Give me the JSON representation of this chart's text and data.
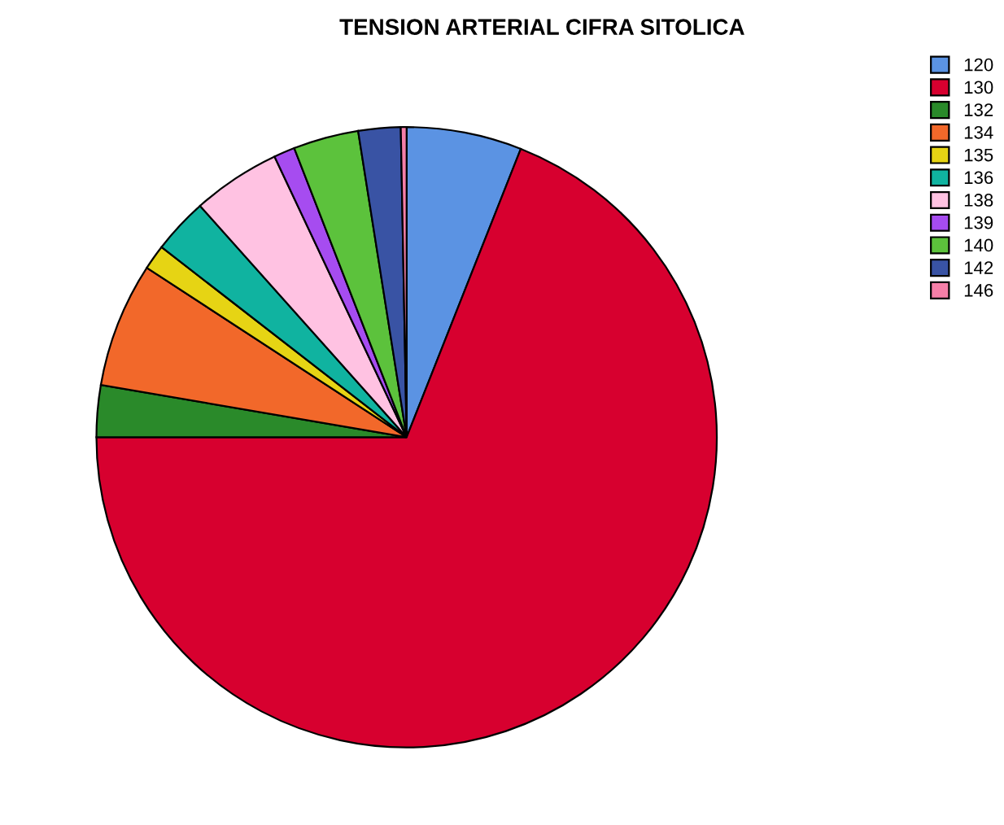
{
  "chart_data": {
    "type": "pie",
    "title": "TENSION ARTERIAL CIFRA SITOLICA",
    "categories": [
      "120",
      "130",
      "132",
      "134",
      "135",
      "136",
      "138",
      "139",
      "140",
      "142",
      "146"
    ],
    "values": [
      6.0,
      69.0,
      2.7,
      6.5,
      1.3,
      2.9,
      4.6,
      1.1,
      3.4,
      2.2,
      0.3
    ],
    "colors": [
      "#5b93e3",
      "#d7002f",
      "#2a8a2a",
      "#f2682a",
      "#e6d414",
      "#10b3a0",
      "#ffc2e2",
      "#a64cf0",
      "#5cc23c",
      "#3953a4",
      "#f57fa8"
    ],
    "legend": "top right"
  }
}
